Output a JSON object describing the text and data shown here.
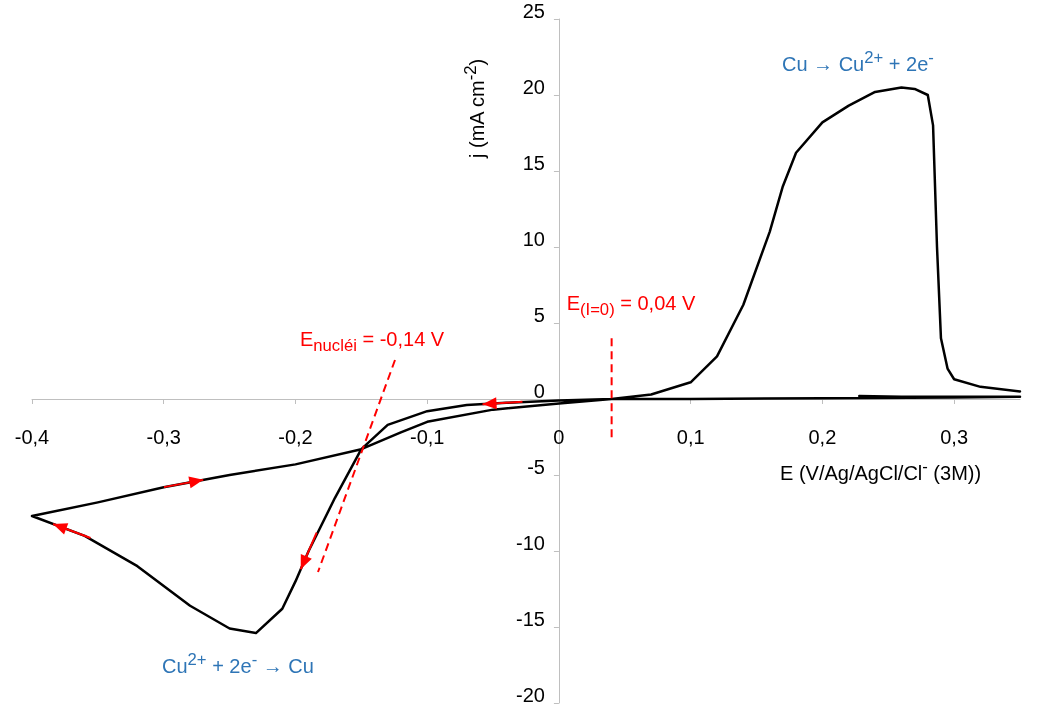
{
  "chart_data": {
    "type": "line",
    "xlabel": "E (V/Ag/AgCl/Cl$^{-}$ (3M))",
    "ylabel": "j (mA cm$^{-2}$)",
    "xlim": [
      -0.4,
      0.35
    ],
    "xticks": [
      {
        "value": -0.4,
        "label": "-0,4"
      },
      {
        "value": -0.3,
        "label": "-0,3"
      },
      {
        "value": -0.2,
        "label": "-0,2"
      },
      {
        "value": -0.1,
        "label": "-0,1"
      },
      0,
      {
        "value": 0.1,
        "label": "0,1"
      },
      {
        "value": 0.2,
        "label": "0,2"
      },
      {
        "value": 0.3,
        "label": "0,3"
      }
    ],
    "ylim": [
      -20,
      25
    ],
    "yticks": [
      -20,
      -15,
      -10,
      -5,
      0,
      5,
      10,
      15,
      20,
      25
    ],
    "marker": "none",
    "line_style": "solid",
    "series": [
      {
        "color": "#000000",
        "x": [
          0.228,
          0.26,
          0.3,
          0.35,
          0.3,
          0.2,
          0.1,
          0.04,
          0,
          -0.04,
          -0.07,
          -0.1,
          -0.13,
          -0.15,
          -0.17,
          -0.19,
          -0.2,
          -0.21,
          -0.23,
          -0.25,
          -0.28,
          -0.32,
          -0.36,
          -0.4,
          -0.35,
          -0.3,
          -0.25,
          -0.2,
          -0.15,
          -0.12,
          -0.1,
          -0.05,
          0,
          0.04,
          0.07,
          0.1,
          0.12,
          0.14,
          0.16,
          0.17,
          0.18,
          0.2,
          0.22,
          0.24,
          0.26,
          0.27,
          0.28,
          0.284,
          0.287,
          0.29,
          0.295,
          0.3,
          0.32,
          0.35
        ],
        "values": [
          0.2,
          0.15,
          0.15,
          0.15,
          0.1,
          0.05,
          0,
          0,
          -0.1,
          -0.25,
          -0.4,
          -0.8,
          -1.7,
          -3.3,
          -6.5,
          -10,
          -12,
          -13.8,
          -15.4,
          -15.1,
          -13.6,
          -11,
          -9,
          -7.7,
          -6.8,
          -5.8,
          -5,
          -4.3,
          -3.3,
          -2.2,
          -1.5,
          -0.7,
          -0.3,
          0,
          0.3,
          1.1,
          2.8,
          6.2,
          11,
          14,
          16.2,
          18.2,
          19.3,
          20.2,
          20.5,
          20.4,
          20,
          18,
          10,
          4,
          2,
          1.3,
          0.8,
          0.5
        ]
      }
    ],
    "ref_lines": [
      {
        "axis": "x",
        "value": 0.04,
        "label": "E$_{(I=0)}$ = 0,04 V",
        "color": "#ff0000",
        "line_style": "dashed"
      }
    ],
    "annotations": [
      "E$_{nucléi}$ = -0,14 V",
      "Cu → Cu$^{2+}$ + 2e$^{-}$",
      "Cu$^{2+}$ + 2e$^{-}$ → Cu"
    ]
  }
}
